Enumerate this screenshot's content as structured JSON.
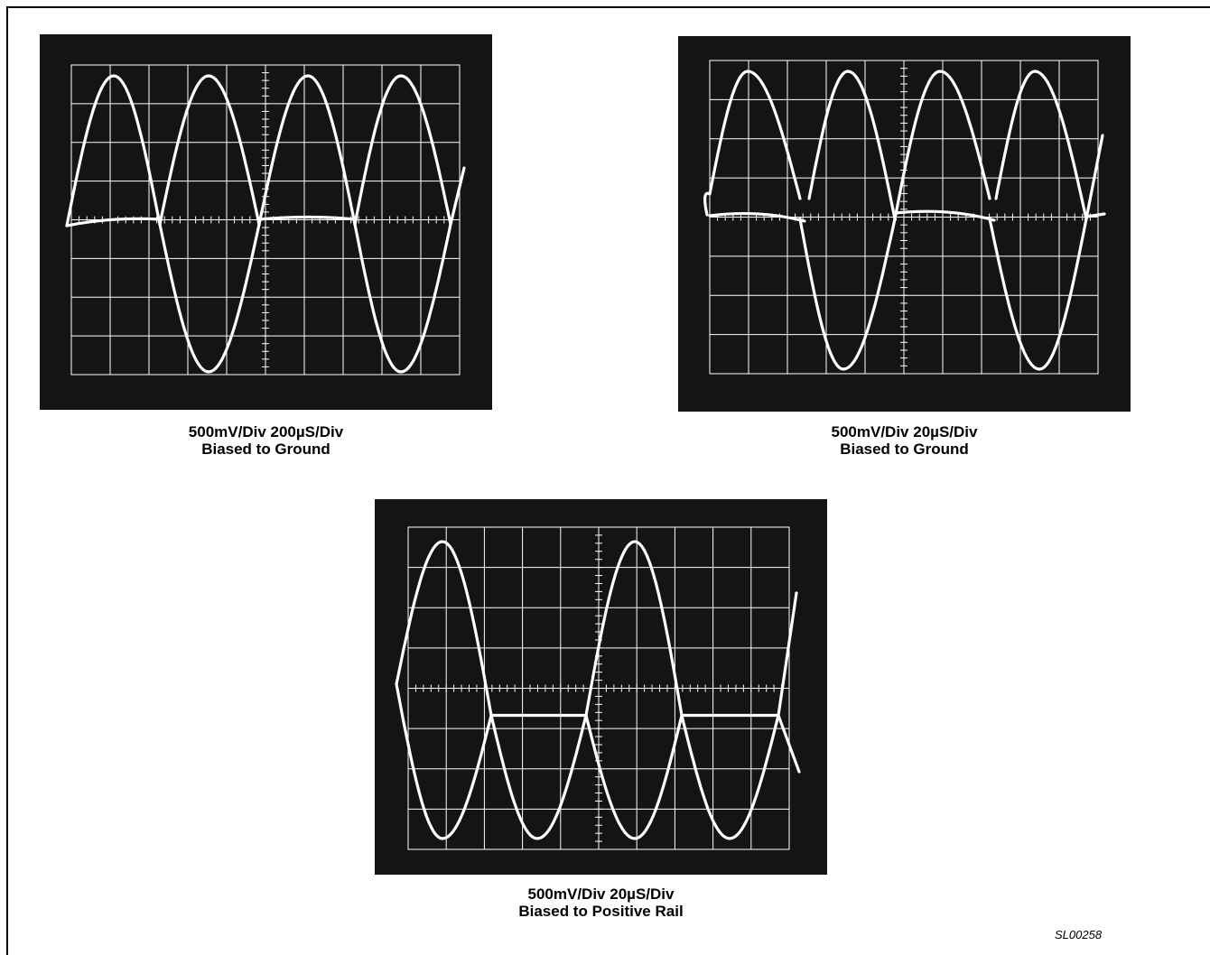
{
  "figure_id": "SL00258",
  "colors": {
    "screen_bg": "#141414",
    "trace": "#ffffff",
    "grid": "#ffffff",
    "page": "#ffffff"
  },
  "scopes": [
    {
      "id": "scope-1",
      "caption_line1": "500mV/Div  200µS/Div",
      "caption_line2": "Biased to Ground",
      "bias": "ground"
    },
    {
      "id": "scope-2",
      "caption_line1": "500mV/Div  20µS/Div",
      "caption_line2": "Biased to Ground",
      "bias": "ground"
    },
    {
      "id": "scope-3",
      "caption_line1": "500mV/Div  20µS/Div",
      "caption_line2": "Biased to Positive Rail",
      "bias": "positive-rail"
    }
  ]
}
